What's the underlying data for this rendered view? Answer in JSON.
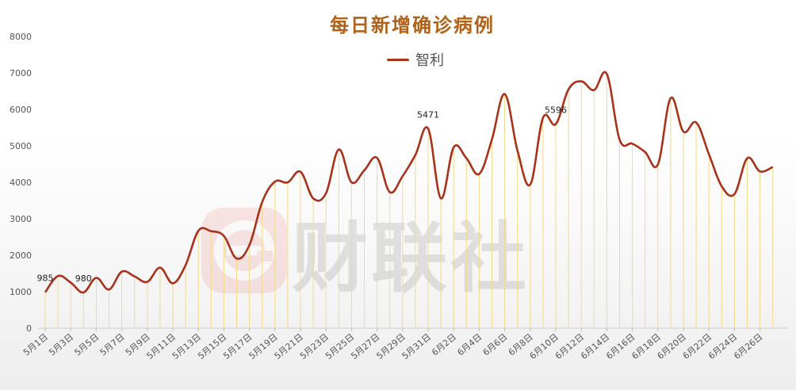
{
  "chart_data": {
    "type": "line",
    "title": "每日新增确诊病例",
    "xlabel": "",
    "ylabel": "",
    "ylim": [
      0,
      8000
    ],
    "yticks": [
      0,
      1000,
      2000,
      3000,
      4000,
      5000,
      6000,
      7000,
      8000
    ],
    "grid": "vertical-lines",
    "legend": "top-center",
    "categories": [
      "5月1日",
      "5月2日",
      "5月3日",
      "5月4日",
      "5月5日",
      "5月6日",
      "5月7日",
      "5月8日",
      "5月9日",
      "5月10日",
      "5月11日",
      "5月12日",
      "5月13日",
      "5月14日",
      "5月15日",
      "5月16日",
      "5月17日",
      "5月18日",
      "5月19日",
      "5月20日",
      "5月21日",
      "5月22日",
      "5月23日",
      "5月24日",
      "5月25日",
      "5月26日",
      "5月27日",
      "5月28日",
      "5月29日",
      "5月30日",
      "5月31日",
      "6月1日",
      "6月2日",
      "6月3日",
      "6月4日",
      "6月5日",
      "6月6日",
      "6月7日",
      "6月8日",
      "6月9日",
      "6月10日",
      "6月11日",
      "6月12日",
      "6月13日",
      "6月14日",
      "6月15日",
      "6月16日",
      "6月17日",
      "6月18日",
      "6月19日",
      "6月20日",
      "6月21日",
      "6月22日",
      "6月23日",
      "6月24日",
      "6月25日",
      "6月26日",
      "6月27日"
    ],
    "xtick_labels": [
      "5月1日",
      "5月3日",
      "5月5日",
      "5月7日",
      "5月9日",
      "5月11日",
      "5月13日",
      "5月15日",
      "5月17日",
      "5月19日",
      "5月21日",
      "5月23日",
      "5月25日",
      "5月27日",
      "5月29日",
      "5月31日",
      "6月2日",
      "6月4日",
      "6月6日",
      "6月8日",
      "6月10日",
      "6月12日",
      "6月14日",
      "6月16日",
      "6月18日",
      "6月20日",
      "6月22日",
      "6月24日",
      "6月26日"
    ],
    "series": [
      {
        "name": "智利",
        "color": "#a8321a",
        "values": [
          985,
          1430,
          1250,
          980,
          1380,
          1060,
          1550,
          1420,
          1270,
          1660,
          1230,
          1730,
          2670,
          2660,
          2530,
          1910,
          2280,
          3460,
          4020,
          4000,
          4290,
          3560,
          3700,
          4900,
          4000,
          4330,
          4670,
          3730,
          4170,
          4750,
          5471,
          3560,
          4960,
          4660,
          4230,
          5180,
          6420,
          4870,
          3940,
          5770,
          5596,
          6550,
          6770,
          6530,
          6970,
          5170,
          5060,
          4830,
          4490,
          6310,
          5390,
          5640,
          4770,
          3890,
          3680,
          4660,
          4300,
          4420
        ]
      }
    ],
    "annotations": [
      {
        "category": "5月1日",
        "text": "985"
      },
      {
        "category": "5月4日",
        "text": "980"
      },
      {
        "category": "5月31日",
        "text": "5471"
      },
      {
        "category": "6月10日",
        "text": "5596"
      }
    ]
  },
  "watermark": {
    "text": "财联社",
    "logo_icon": "cls-e-logo-icon",
    "color": "#e0463c"
  }
}
